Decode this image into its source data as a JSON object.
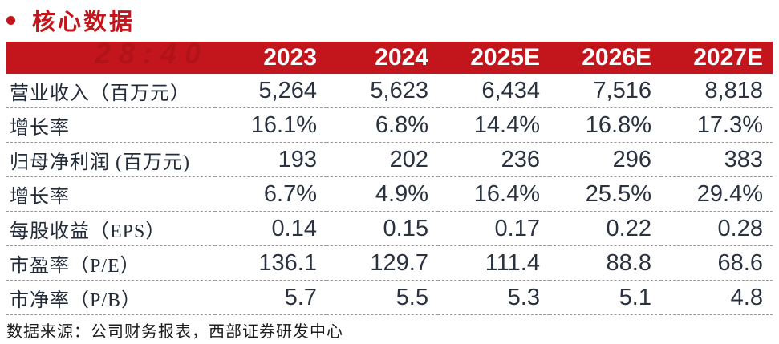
{
  "section": {
    "title": "核心数据"
  },
  "decor": {
    "watermark": "28:40"
  },
  "table": {
    "header": [
      "2023",
      "2024",
      "2025E",
      "2026E",
      "2027E"
    ],
    "rows": [
      {
        "label": "营业收入（百万元）",
        "values": [
          "5,264",
          "5,623",
          "6,434",
          "7,516",
          "8,818"
        ]
      },
      {
        "label": "增长率",
        "values": [
          "16.1%",
          "6.8%",
          "14.4%",
          "16.8%",
          "17.3%"
        ]
      },
      {
        "label": "归母净利润 (百万元)",
        "values": [
          "193",
          "202",
          "236",
          "296",
          "383"
        ]
      },
      {
        "label": "增长率",
        "values": [
          "6.7%",
          "4.9%",
          "16.4%",
          "25.5%",
          "29.4%"
        ]
      },
      {
        "label": "每股收益（EPS）",
        "values": [
          "0.14",
          "0.15",
          "0.17",
          "0.22",
          "0.28"
        ]
      },
      {
        "label": "市盈率（P/E）",
        "values": [
          "136.1",
          "129.7",
          "111.4",
          "88.8",
          "68.6"
        ]
      },
      {
        "label": "市净率（P/B）",
        "values": [
          "5.7",
          "5.5",
          "5.3",
          "5.1",
          "4.8"
        ]
      }
    ]
  },
  "footer": {
    "source": "数据来源：公司财务报表，西部证券研发中心"
  },
  "colors": {
    "accent_red": "#c3161c",
    "header_text": "#ffffff",
    "body_text": "#2a3240"
  }
}
